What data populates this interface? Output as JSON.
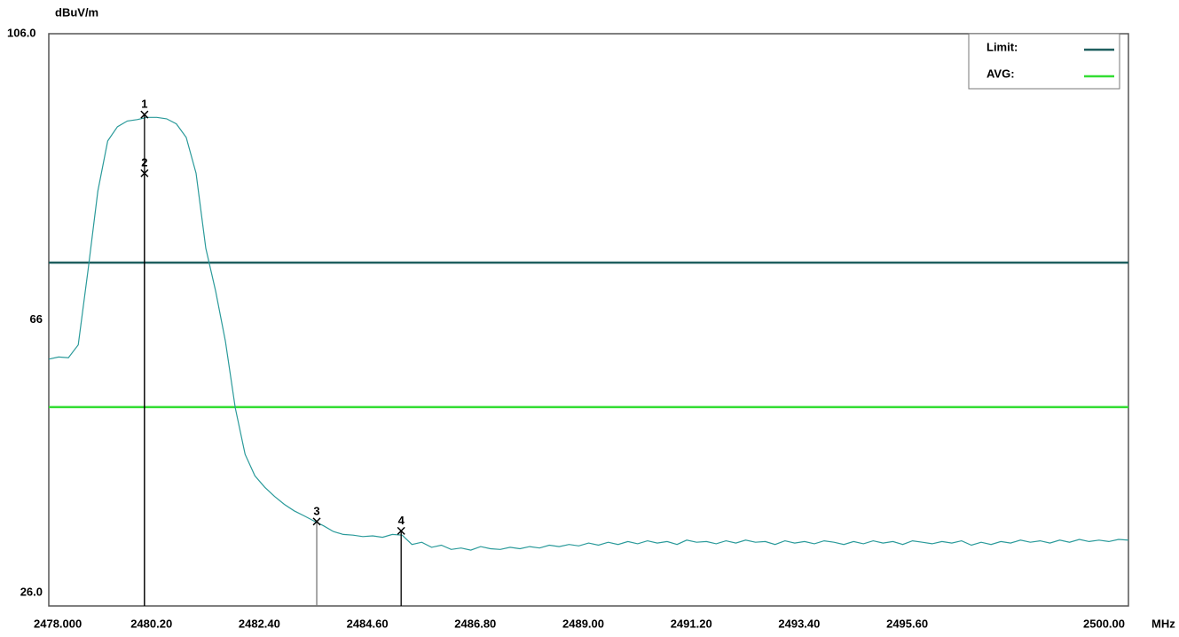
{
  "chart_data": {
    "type": "line",
    "y_unit": "dBuV/m",
    "x_unit": "MHz",
    "xlim": [
      2478,
      2500
    ],
    "ylim": [
      26,
      106
    ],
    "xticks": [
      {
        "value": 2478,
        "label": "2478.000"
      },
      {
        "value": 2480.2,
        "label": "2480.20"
      },
      {
        "value": 2482.4,
        "label": "2482.40"
      },
      {
        "value": 2484.6,
        "label": "2484.60"
      },
      {
        "value": 2486.8,
        "label": "2486.80"
      },
      {
        "value": 2489,
        "label": "2489.00"
      },
      {
        "value": 2491.2,
        "label": "2491.20"
      },
      {
        "value": 2493.4,
        "label": "2493.40"
      },
      {
        "value": 2495.6,
        "label": "2495.60"
      },
      {
        "value": 2500,
        "label": "2500.00"
      }
    ],
    "xgrid": [
      2497.8
    ],
    "yticks": [
      {
        "value": 106,
        "label": "106.0"
      },
      66,
      {
        "value": 26,
        "label": "26.0"
      }
    ],
    "ygrid": [
      36,
      46,
      56,
      76,
      86,
      96
    ],
    "grid": true,
    "x": [
      2478.0,
      2478.2,
      2478.4,
      2478.6,
      2478.8,
      2479.0,
      2479.2,
      2479.4,
      2479.6,
      2479.8,
      2480.0,
      2480.2,
      2480.4,
      2480.6,
      2480.8,
      2481.0,
      2481.2,
      2481.4,
      2481.6,
      2481.8,
      2482.0,
      2482.2,
      2482.4,
      2482.6,
      2482.8,
      2483.0,
      2483.2,
      2483.4,
      2483.6,
      2483.8,
      2484.0,
      2484.2,
      2484.4,
      2484.6,
      2484.8,
      2485.0,
      2485.2,
      2485.4,
      2485.6,
      2485.8,
      2486.0,
      2486.2,
      2486.4,
      2486.6,
      2486.8,
      2487.0,
      2487.2,
      2487.4,
      2487.6,
      2487.8,
      2488.0,
      2488.2,
      2488.4,
      2488.6,
      2488.8,
      2489.0,
      2489.2,
      2489.4,
      2489.6,
      2489.8,
      2490.0,
      2490.2,
      2490.4,
      2490.6,
      2490.8,
      2491.0,
      2491.2,
      2491.4,
      2491.6,
      2491.8,
      2492.0,
      2492.2,
      2492.4,
      2492.6,
      2492.8,
      2493.0,
      2493.2,
      2493.4,
      2493.6,
      2493.8,
      2494.0,
      2494.2,
      2494.4,
      2494.6,
      2494.8,
      2495.0,
      2495.2,
      2495.4,
      2495.6,
      2495.8,
      2496.0,
      2496.2,
      2496.4,
      2496.6,
      2496.8,
      2497.0,
      2497.2,
      2497.4,
      2497.6,
      2497.8,
      2498.0,
      2498.2,
      2498.4,
      2498.6,
      2498.8,
      2499.0,
      2499.2,
      2499.4,
      2499.6,
      2499.8,
      2500.0
    ],
    "series": [
      {
        "color": "#2a9a9a",
        "values": [
          60.5,
          60.8,
          60.7,
          62.5,
          73.0,
          84.0,
          91.0,
          93.0,
          93.8,
          94.0,
          94.3,
          94.3,
          94.1,
          93.4,
          91.5,
          86.5,
          76.0,
          70.0,
          63.0,
          53.7,
          47.2,
          44.2,
          42.6,
          41.3,
          40.2,
          39.3,
          38.6,
          37.9,
          37.2,
          36.4,
          36.0,
          35.9,
          35.7,
          35.8,
          35.6,
          36.0,
          35.9,
          34.6,
          34.9,
          34.2,
          34.5,
          33.9,
          34.1,
          33.8,
          34.3,
          34.0,
          33.9,
          34.2,
          34.0,
          34.3,
          34.1,
          34.5,
          34.3,
          34.6,
          34.4,
          34.8,
          34.5,
          34.9,
          34.6,
          35.0,
          34.7,
          35.1,
          34.8,
          35.0,
          34.6,
          35.2,
          34.9,
          35.0,
          34.7,
          35.1,
          34.8,
          35.2,
          34.9,
          35.0,
          34.6,
          35.1,
          34.8,
          35.0,
          34.7,
          35.1,
          34.9,
          34.6,
          35.0,
          34.7,
          35.1,
          34.8,
          35.0,
          34.6,
          35.1,
          34.9,
          34.7,
          35.0,
          34.8,
          35.1,
          34.5,
          34.9,
          34.6,
          35.0,
          34.8,
          35.2,
          34.9,
          35.1,
          34.8,
          35.2,
          34.9,
          35.3,
          35.0,
          35.2,
          35.0,
          35.3,
          35.2
        ]
      }
    ],
    "limit_lines": [
      {
        "name": "Limit:",
        "color": "#1f5f5f",
        "value": 74
      },
      {
        "name": "AVG:",
        "color": "#33dd33",
        "value": 53.8
      }
    ],
    "markers": [
      {
        "label": "1",
        "x": 2479.95,
        "value": 94.7
      },
      {
        "label": "2",
        "x": 2479.95,
        "value": 86.5
      },
      {
        "label": "3",
        "x": 2483.46,
        "value": 37.8
      },
      {
        "label": "4",
        "x": 2485.18,
        "value": 36.5
      }
    ]
  }
}
